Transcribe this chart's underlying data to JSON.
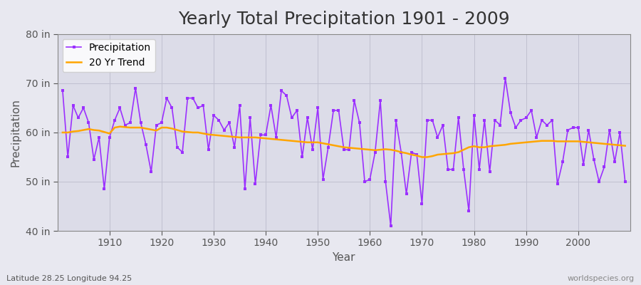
{
  "title": "Yearly Total Precipitation 1901 - 2009",
  "xlabel": "Year",
  "ylabel": "Precipitation",
  "subtitle": "Latitude 28.25 Longitude 94.25",
  "watermark": "worldspecies.org",
  "years": [
    1901,
    1902,
    1903,
    1904,
    1905,
    1906,
    1907,
    1908,
    1909,
    1910,
    1911,
    1912,
    1913,
    1914,
    1915,
    1916,
    1917,
    1918,
    1919,
    1920,
    1921,
    1922,
    1923,
    1924,
    1925,
    1926,
    1927,
    1928,
    1929,
    1930,
    1931,
    1932,
    1933,
    1934,
    1935,
    1936,
    1937,
    1938,
    1939,
    1940,
    1941,
    1942,
    1943,
    1944,
    1945,
    1946,
    1947,
    1948,
    1949,
    1950,
    1951,
    1952,
    1953,
    1954,
    1955,
    1956,
    1957,
    1958,
    1959,
    1960,
    1961,
    1962,
    1963,
    1964,
    1965,
    1966,
    1967,
    1968,
    1969,
    1970,
    1971,
    1972,
    1973,
    1974,
    1975,
    1976,
    1977,
    1978,
    1979,
    1980,
    1981,
    1982,
    1983,
    1984,
    1985,
    1986,
    1987,
    1988,
    1989,
    1990,
    1991,
    1992,
    1993,
    1994,
    1995,
    1996,
    1997,
    1998,
    1999,
    2000,
    2001,
    2002,
    2003,
    2004,
    2005,
    2006,
    2007,
    2008,
    2009
  ],
  "precip": [
    68.5,
    55.0,
    65.5,
    63.0,
    65.0,
    62.0,
    54.5,
    59.0,
    48.5,
    59.0,
    62.5,
    65.0,
    61.5,
    62.0,
    69.0,
    62.0,
    57.5,
    52.0,
    61.5,
    62.0,
    67.0,
    65.0,
    57.0,
    56.0,
    67.0,
    67.0,
    65.0,
    65.5,
    56.5,
    63.5,
    62.5,
    60.5,
    62.0,
    57.0,
    65.5,
    48.5,
    63.0,
    49.5,
    59.5,
    59.5,
    65.5,
    59.0,
    68.5,
    67.5,
    63.0,
    64.5,
    55.0,
    63.0,
    56.5,
    65.0,
    50.5,
    57.0,
    64.5,
    64.5,
    56.5,
    56.5,
    66.5,
    62.0,
    50.0,
    50.5,
    56.0,
    66.5,
    50.0,
    41.0,
    62.5,
    56.0,
    47.5,
    56.0,
    55.5,
    45.5,
    62.5,
    62.5,
    59.0,
    61.5,
    52.5,
    52.5,
    63.0,
    52.5,
    44.0,
    63.5,
    52.5,
    62.5,
    52.0,
    62.5,
    61.5,
    71.0,
    64.0,
    61.0,
    62.5,
    63.0,
    64.5,
    59.0,
    62.5,
    61.5,
    62.5,
    49.5,
    54.0,
    60.5,
    61.0,
    61.0,
    53.5,
    60.5,
    54.5,
    50.0,
    53.0,
    60.5,
    54.0,
    60.0,
    50.0
  ],
  "trend": [
    60.0,
    60.0,
    60.2,
    60.3,
    60.5,
    60.7,
    60.5,
    60.4,
    60.1,
    59.8,
    61.0,
    61.2,
    61.1,
    61.0,
    61.0,
    61.0,
    60.8,
    60.6,
    60.4,
    61.0,
    61.0,
    60.8,
    60.5,
    60.2,
    60.1,
    60.0,
    60.0,
    59.8,
    59.6,
    59.5,
    59.4,
    59.3,
    59.2,
    59.1,
    59.0,
    59.0,
    59.0,
    59.0,
    58.9,
    58.8,
    58.7,
    58.6,
    58.5,
    58.4,
    58.3,
    58.2,
    58.1,
    58.0,
    58.0,
    58.0,
    57.8,
    57.6,
    57.4,
    57.2,
    57.0,
    56.9,
    56.8,
    56.7,
    56.6,
    56.5,
    56.4,
    56.5,
    56.6,
    56.5,
    56.3,
    56.0,
    55.8,
    55.5,
    55.3,
    55.0,
    55.0,
    55.2,
    55.5,
    55.6,
    55.7,
    55.8,
    56.0,
    56.5,
    57.0,
    57.2,
    57.0,
    57.0,
    57.2,
    57.3,
    57.4,
    57.5,
    57.7,
    57.8,
    57.9,
    58.0,
    58.1,
    58.2,
    58.3,
    58.3,
    58.3,
    58.2,
    58.2,
    58.2,
    58.2,
    58.2,
    58.1,
    58.0,
    57.9,
    57.8,
    57.7,
    57.6,
    57.5,
    57.4,
    57.3
  ],
  "precip_color": "#9B30FF",
  "trend_color": "#FFA500",
  "bg_color": "#E8E8F0",
  "plot_bg_color": "#DCDCE8",
  "ylim": [
    40,
    80
  ],
  "yticks": [
    40,
    50,
    60,
    70,
    80
  ],
  "ytick_labels": [
    "40 in",
    "50 in",
    "60 in",
    "70 in",
    "80 in"
  ],
  "xtick_years": [
    1910,
    1920,
    1930,
    1940,
    1950,
    1960,
    1970,
    1980,
    1990,
    2000
  ],
  "grid_color": "#C0C0D0",
  "title_fontsize": 18,
  "axis_fontsize": 11,
  "tick_fontsize": 10,
  "legend_fontsize": 10
}
